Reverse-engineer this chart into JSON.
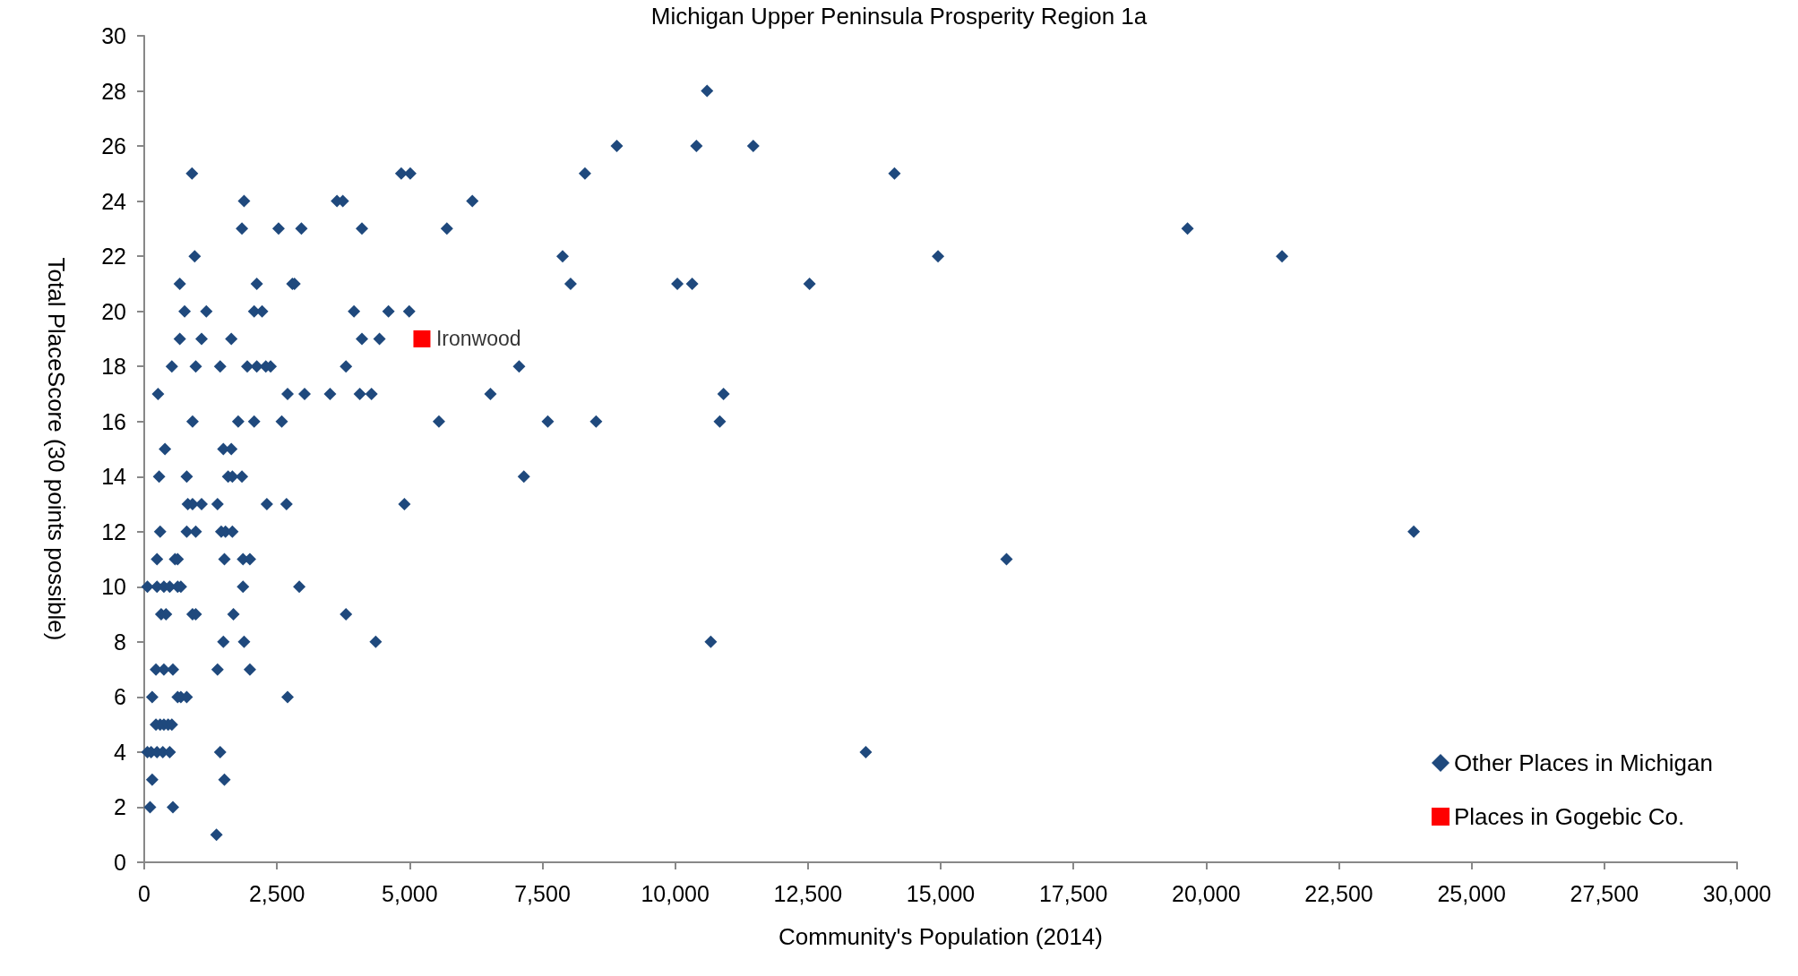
{
  "chart_data": {
    "type": "scatter",
    "title": "Michigan Upper Peninsula Prosperity Region 1a",
    "xlabel": "Community's Population (2014)",
    "ylabel": "Total PlaceScore (30 points possible)",
    "xlim": [
      0,
      30000
    ],
    "xticks": [
      {
        "value": 0,
        "label": "0"
      },
      {
        "value": 2500,
        "label": "2,500"
      },
      {
        "value": 5000,
        "label": "5,000"
      },
      {
        "value": 7500,
        "label": "7,500"
      },
      {
        "value": 10000,
        "label": "10,000"
      },
      {
        "value": 12500,
        "label": "12,500"
      },
      {
        "value": 15000,
        "label": "15,000"
      },
      {
        "value": 17500,
        "label": "17,500"
      },
      {
        "value": 20000,
        "label": "20,000"
      },
      {
        "value": 22500,
        "label": "22,500"
      },
      {
        "value": 25000,
        "label": "25,000"
      },
      {
        "value": 27500,
        "label": "27,500"
      },
      {
        "value": 30000,
        "label": "30,000"
      }
    ],
    "ylim": [
      0,
      30
    ],
    "yticks": [
      0,
      2,
      4,
      6,
      8,
      10,
      12,
      14,
      16,
      18,
      20,
      22,
      24,
      26,
      28,
      30
    ],
    "grid": false,
    "legend": "bottom right",
    "annotations": [
      {
        "text": "Ironwood",
        "x": 5230,
        "y": 19
      }
    ],
    "series": [
      {
        "name": "Other Places in Michigan",
        "color": "#1f497d",
        "marker": "diamond",
        "x": [
          10600,
          8900,
          10400,
          11470,
          900,
          4840,
          5010,
          8300,
          14130,
          1880,
          3630,
          3740,
          6180,
          1840,
          2530,
          2960,
          4100,
          5700,
          19650,
          950,
          7880,
          14950,
          21430,
          670,
          2120,
          2790,
          2830,
          8030,
          10040,
          10320,
          12530,
          760,
          1170,
          2070,
          2220,
          3950,
          4600,
          4990,
          670,
          1080,
          1640,
          4100,
          4430,
          520,
          970,
          1430,
          1940,
          2120,
          2290,
          2380,
          3800,
          7060,
          260,
          2700,
          3020,
          3500,
          4060,
          4280,
          6520,
          10910,
          910,
          1770,
          2070,
          2590,
          5550,
          7600,
          8510,
          10840,
          390,
          1490,
          1640,
          280,
          800,
          1580,
          1660,
          1840,
          7150,
          820,
          910,
          1080,
          1380,
          2310,
          2680,
          4900,
          300,
          800,
          970,
          1450,
          1530,
          1660,
          23910,
          240,
          580,
          630,
          1510,
          1860,
          1990,
          16240,
          60,
          240,
          370,
          480,
          630,
          690,
          1860,
          2920,
          320,
          410,
          910,
          970,
          1680,
          3800,
          1490,
          1880,
          4360,
          10670,
          220,
          370,
          540,
          1380,
          1990,
          150,
          630,
          690,
          800,
          2700,
          220,
          300,
          370,
          450,
          520,
          60,
          130,
          240,
          350,
          480,
          1430,
          13590,
          150,
          1510,
          110,
          540,
          1360
        ],
        "values": [
          28,
          26,
          26,
          26,
          25,
          25,
          25,
          25,
          25,
          24,
          24,
          24,
          24,
          23,
          23,
          23,
          23,
          23,
          23,
          22,
          22,
          22,
          22,
          21,
          21,
          21,
          21,
          21,
          21,
          21,
          21,
          20,
          20,
          20,
          20,
          20,
          20,
          20,
          19,
          19,
          19,
          19,
          19,
          18,
          18,
          18,
          18,
          18,
          18,
          18,
          18,
          18,
          17,
          17,
          17,
          17,
          17,
          17,
          17,
          17,
          16,
          16,
          16,
          16,
          16,
          16,
          16,
          16,
          15,
          15,
          15,
          14,
          14,
          14,
          14,
          14,
          14,
          13,
          13,
          13,
          13,
          13,
          13,
          13,
          12,
          12,
          12,
          12,
          12,
          12,
          12,
          11,
          11,
          11,
          11,
          11,
          11,
          11,
          10,
          10,
          10,
          10,
          10,
          10,
          10,
          10,
          9,
          9,
          9,
          9,
          9,
          9,
          8,
          8,
          8,
          8,
          7,
          7,
          7,
          7,
          7,
          6,
          6,
          6,
          6,
          6,
          5,
          5,
          5,
          5,
          5,
          4,
          4,
          4,
          4,
          4,
          4,
          4,
          3,
          3,
          2,
          2,
          1
        ]
      },
      {
        "name": "Places in Gogebic Co.",
        "color": "#ff0000",
        "marker": "square",
        "x": [
          5230
        ],
        "values": [
          19
        ]
      }
    ]
  }
}
